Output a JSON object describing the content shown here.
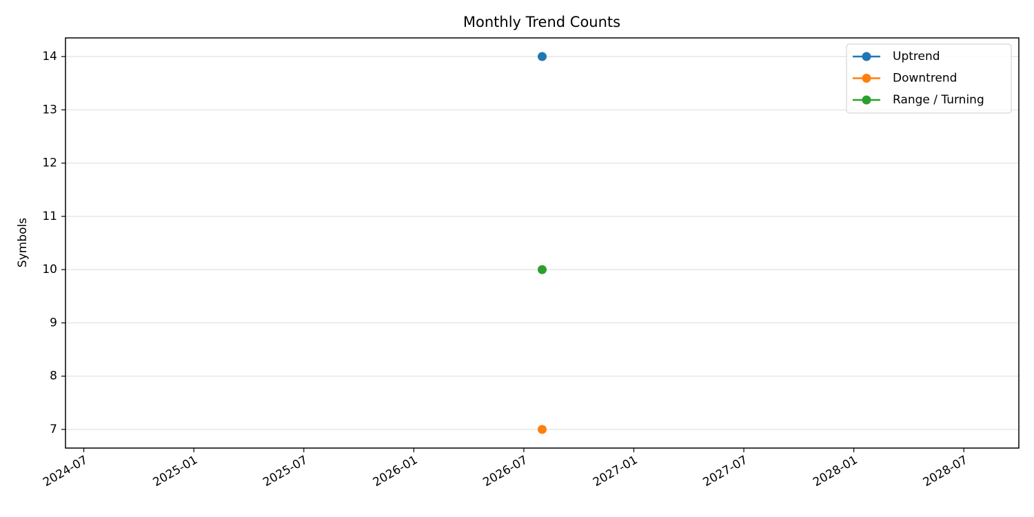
{
  "chart_data": {
    "type": "line",
    "title": "Monthly Trend Counts",
    "y_label": "Symbols",
    "x": [
      "2026-08"
    ],
    "series": [
      {
        "name": "Uptrend",
        "color": "#1f77b4",
        "values": [
          14
        ]
      },
      {
        "name": "Downtrend",
        "color": "#ff7f0e",
        "values": [
          7
        ]
      },
      {
        "name": "Range / Turning",
        "color": "#2ca02c",
        "values": [
          10
        ]
      }
    ],
    "xlim": [
      "2024-06",
      "2028-10"
    ],
    "xticks": [
      "2024-07",
      "2025-01",
      "2025-07",
      "2026-01",
      "2026-07",
      "2027-01",
      "2027-07",
      "2028-01",
      "2028-07"
    ],
    "ylim": [
      6.65,
      14.35
    ],
    "yticks": [
      7,
      8,
      9,
      10,
      11,
      12,
      13,
      14
    ],
    "grid": "y",
    "legend": "upper right"
  }
}
